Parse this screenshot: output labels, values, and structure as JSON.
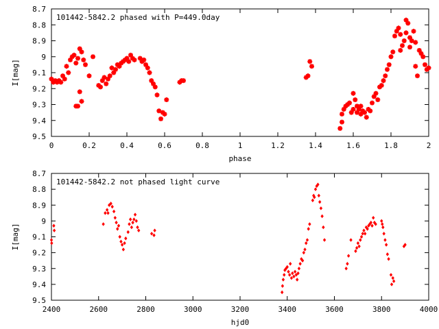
{
  "chart_data": [
    {
      "type": "scatter",
      "title": "101442-5842.2 phased with P=449.0day",
      "xlabel": "phase",
      "ylabel": "I[mag]",
      "xlim": [
        0,
        2
      ],
      "ylim": [
        9.5,
        8.7
      ],
      "y_inverted": true,
      "grid": false,
      "marker": "cross",
      "color": "#ff0000",
      "x_ticks": [
        "0",
        "0.2",
        "0.4",
        "0.6",
        "0.8",
        "1",
        "1.2",
        "1.4",
        "1.6",
        "1.8",
        "2"
      ],
      "y_ticks": [
        "8.7",
        "8.8",
        "8.9",
        "9",
        "9.1",
        "9.2",
        "9.3",
        "9.4",
        "9.5"
      ],
      "points": [
        [
          0.0,
          9.14
        ],
        [
          0.01,
          9.16
        ],
        [
          0.02,
          9.15
        ],
        [
          0.03,
          9.16
        ],
        [
          0.04,
          9.15
        ],
        [
          0.05,
          9.16
        ],
        [
          0.06,
          9.12
        ],
        [
          0.07,
          9.14
        ],
        [
          0.08,
          9.06
        ],
        [
          0.09,
          9.1
        ],
        [
          0.1,
          9.02
        ],
        [
          0.11,
          9.0
        ],
        [
          0.12,
          8.99
        ],
        [
          0.13,
          9.04
        ],
        [
          0.14,
          9.01
        ],
        [
          0.15,
          8.95
        ],
        [
          0.16,
          8.97
        ],
        [
          0.17,
          9.02
        ],
        [
          0.18,
          9.05
        ],
        [
          0.2,
          9.12
        ],
        [
          0.22,
          9.0
        ],
        [
          0.13,
          9.31
        ],
        [
          0.14,
          9.31
        ],
        [
          0.15,
          9.22
        ],
        [
          0.16,
          9.28
        ],
        [
          0.25,
          9.18
        ],
        [
          0.26,
          9.19
        ],
        [
          0.27,
          9.15
        ],
        [
          0.28,
          9.13
        ],
        [
          0.29,
          9.17
        ],
        [
          0.3,
          9.14
        ],
        [
          0.31,
          9.12
        ],
        [
          0.32,
          9.07
        ],
        [
          0.33,
          9.1
        ],
        [
          0.34,
          9.08
        ],
        [
          0.35,
          9.05
        ],
        [
          0.36,
          9.06
        ],
        [
          0.37,
          9.04
        ],
        [
          0.38,
          9.03
        ],
        [
          0.39,
          9.02
        ],
        [
          0.4,
          9.01
        ],
        [
          0.41,
          9.03
        ],
        [
          0.42,
          8.99
        ],
        [
          0.43,
          9.01
        ],
        [
          0.44,
          9.02
        ],
        [
          0.47,
          9.01
        ],
        [
          0.48,
          9.03
        ],
        [
          0.49,
          9.02
        ],
        [
          0.5,
          9.05
        ],
        [
          0.51,
          9.07
        ],
        [
          0.52,
          9.1
        ],
        [
          0.53,
          9.15
        ],
        [
          0.54,
          9.17
        ],
        [
          0.55,
          9.19
        ],
        [
          0.56,
          9.24
        ],
        [
          0.57,
          9.34
        ],
        [
          0.58,
          9.39
        ],
        [
          0.59,
          9.35
        ],
        [
          0.6,
          9.36
        ],
        [
          0.61,
          9.27
        ],
        [
          0.68,
          9.16
        ],
        [
          0.69,
          9.15
        ],
        [
          0.7,
          9.15
        ],
        [
          1.35,
          9.13
        ],
        [
          1.36,
          9.12
        ],
        [
          1.37,
          9.03
        ],
        [
          1.38,
          9.06
        ],
        [
          1.53,
          9.45
        ],
        [
          1.54,
          9.41
        ],
        [
          1.54,
          9.36
        ],
        [
          1.55,
          9.33
        ],
        [
          1.56,
          9.31
        ],
        [
          1.57,
          9.3
        ],
        [
          1.58,
          9.29
        ],
        [
          1.59,
          9.35
        ],
        [
          1.6,
          9.33
        ],
        [
          1.6,
          9.23
        ],
        [
          1.61,
          9.27
        ],
        [
          1.62,
          9.31
        ],
        [
          1.62,
          9.35
        ],
        [
          1.63,
          9.33
        ],
        [
          1.64,
          9.36
        ],
        [
          1.64,
          9.31
        ],
        [
          1.65,
          9.34
        ],
        [
          1.66,
          9.35
        ],
        [
          1.67,
          9.38
        ],
        [
          1.68,
          9.33
        ],
        [
          1.69,
          9.34
        ],
        [
          1.7,
          9.29
        ],
        [
          1.71,
          9.25
        ],
        [
          1.72,
          9.23
        ],
        [
          1.73,
          9.27
        ],
        [
          1.74,
          9.19
        ],
        [
          1.75,
          9.18
        ],
        [
          1.76,
          9.15
        ],
        [
          1.77,
          9.12
        ],
        [
          1.78,
          9.08
        ],
        [
          1.79,
          9.05
        ],
        [
          1.8,
          9.0
        ],
        [
          1.81,
          8.97
        ],
        [
          1.82,
          8.87
        ],
        [
          1.83,
          8.84
        ],
        [
          1.84,
          8.82
        ],
        [
          1.85,
          8.86
        ],
        [
          1.85,
          8.96
        ],
        [
          1.86,
          8.93
        ],
        [
          1.87,
          8.9
        ],
        [
          1.88,
          8.77
        ],
        [
          1.88,
          8.85
        ],
        [
          1.89,
          8.79
        ],
        [
          1.9,
          8.88
        ],
        [
          1.9,
          8.94
        ],
        [
          1.91,
          8.9
        ],
        [
          1.92,
          8.84
        ],
        [
          1.93,
          8.91
        ],
        [
          1.93,
          9.06
        ],
        [
          1.94,
          9.12
        ],
        [
          1.95,
          8.96
        ],
        [
          1.96,
          8.98
        ],
        [
          1.97,
          9.0
        ],
        [
          1.98,
          9.05
        ],
        [
          1.99,
          9.08
        ],
        [
          2.0,
          9.07
        ]
      ]
    },
    {
      "type": "scatter",
      "title": "101442-5842.2 not phased light curve",
      "xlabel": "hjd0",
      "ylabel": "I[mag]",
      "xlim": [
        2400,
        4000
      ],
      "ylim": [
        9.5,
        8.7
      ],
      "y_inverted": true,
      "grid": false,
      "marker": "diamond",
      "color": "#ff0000",
      "x_ticks": [
        "2400",
        "2600",
        "2800",
        "3000",
        "3200",
        "3400",
        "3600",
        "3800",
        "4000"
      ],
      "y_ticks": [
        "8.7",
        "8.8",
        "8.9",
        "9",
        "9.1",
        "9.2",
        "9.3",
        "9.4",
        "9.5"
      ],
      "points": [
        [
          2400,
          9.12
        ],
        [
          2401,
          9.14
        ],
        [
          2410,
          9.03
        ],
        [
          2412,
          9.06
        ],
        [
          2620,
          9.02
        ],
        [
          2628,
          8.95
        ],
        [
          2636,
          8.93
        ],
        [
          2640,
          8.95
        ],
        [
          2645,
          8.9
        ],
        [
          2652,
          8.89
        ],
        [
          2658,
          8.91
        ],
        [
          2665,
          8.94
        ],
        [
          2670,
          8.98
        ],
        [
          2675,
          9.01
        ],
        [
          2680,
          9.05
        ],
        [
          2685,
          9.03
        ],
        [
          2690,
          9.1
        ],
        [
          2695,
          9.13
        ],
        [
          2700,
          9.15
        ],
        [
          2705,
          9.18
        ],
        [
          2710,
          9.14
        ],
        [
          2715,
          9.11
        ],
        [
          2725,
          9.07
        ],
        [
          2730,
          9.02
        ],
        [
          2735,
          8.99
        ],
        [
          2740,
          9.04
        ],
        [
          2745,
          9.01
        ],
        [
          2750,
          8.99
        ],
        [
          2755,
          8.96
        ],
        [
          2760,
          9.0
        ],
        [
          2765,
          9.04
        ],
        [
          2770,
          9.06
        ],
        [
          2825,
          9.08
        ],
        [
          2835,
          9.09
        ],
        [
          2838,
          9.06
        ],
        [
          3378,
          9.45
        ],
        [
          3380,
          9.41
        ],
        [
          3383,
          9.37
        ],
        [
          3387,
          9.34
        ],
        [
          3390,
          9.31
        ],
        [
          3395,
          9.3
        ],
        [
          3400,
          9.29
        ],
        [
          3405,
          9.32
        ],
        [
          3410,
          9.34
        ],
        [
          3413,
          9.27
        ],
        [
          3418,
          9.36
        ],
        [
          3422,
          9.33
        ],
        [
          3428,
          9.35
        ],
        [
          3433,
          9.32
        ],
        [
          3438,
          9.34
        ],
        [
          3442,
          9.37
        ],
        [
          3446,
          9.33
        ],
        [
          3450,
          9.3
        ],
        [
          3455,
          9.27
        ],
        [
          3460,
          9.24
        ],
        [
          3465,
          9.25
        ],
        [
          3470,
          9.2
        ],
        [
          3475,
          9.18
        ],
        [
          3480,
          9.14
        ],
        [
          3485,
          9.12
        ],
        [
          3490,
          9.05
        ],
        [
          3495,
          9.02
        ],
        [
          3508,
          8.87
        ],
        [
          3512,
          8.84
        ],
        [
          3515,
          8.85
        ],
        [
          3520,
          8.8
        ],
        [
          3525,
          8.78
        ],
        [
          3530,
          8.77
        ],
        [
          3534,
          8.84
        ],
        [
          3538,
          8.88
        ],
        [
          3543,
          8.92
        ],
        [
          3548,
          8.97
        ],
        [
          3553,
          9.04
        ],
        [
          3558,
          9.12
        ],
        [
          3650,
          9.3
        ],
        [
          3655,
          9.27
        ],
        [
          3660,
          9.22
        ],
        [
          3670,
          9.12
        ],
        [
          3690,
          9.19
        ],
        [
          3695,
          9.17
        ],
        [
          3700,
          9.14
        ],
        [
          3705,
          9.16
        ],
        [
          3710,
          9.12
        ],
        [
          3715,
          9.1
        ],
        [
          3720,
          9.08
        ],
        [
          3725,
          9.06
        ],
        [
          3730,
          9.08
        ],
        [
          3735,
          9.04
        ],
        [
          3740,
          9.05
        ],
        [
          3745,
          9.03
        ],
        [
          3750,
          9.02
        ],
        [
          3755,
          9.01
        ],
        [
          3760,
          9.03
        ],
        [
          3765,
          8.98
        ],
        [
          3770,
          9.01
        ],
        [
          3775,
          9.02
        ],
        [
          3800,
          9.0
        ],
        [
          3803,
          9.02
        ],
        [
          3806,
          9.04
        ],
        [
          3810,
          9.08
        ],
        [
          3815,
          9.12
        ],
        [
          3820,
          9.15
        ],
        [
          3825,
          9.21
        ],
        [
          3830,
          9.24
        ],
        [
          3840,
          9.34
        ],
        [
          3843,
          9.4
        ],
        [
          3848,
          9.36
        ],
        [
          3852,
          9.38
        ],
        [
          3895,
          9.16
        ],
        [
          3900,
          9.15
        ]
      ]
    }
  ]
}
